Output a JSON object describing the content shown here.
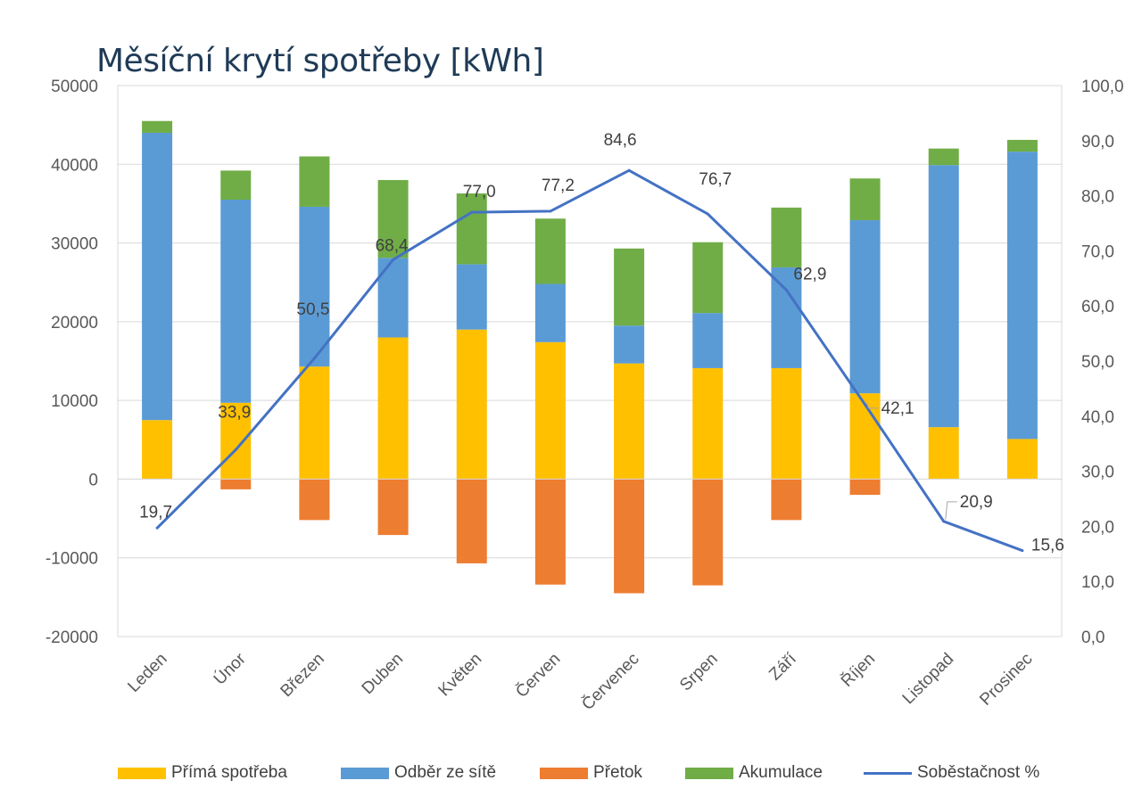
{
  "chart_data": {
    "type": "bar",
    "title": "Měsíční krytí spotřeby [kWh]",
    "categories": [
      "Leden",
      "Únor",
      "Březen",
      "Duben",
      "Květen",
      "Červen",
      "Červenec",
      "Srpen",
      "Září",
      "Říjen",
      "Listopad",
      "Prosinec"
    ],
    "ylim": [
      -20000,
      50000
    ],
    "y_ticks": [
      "50000",
      "40000",
      "30000",
      "20000",
      "10000",
      "0",
      "-10000",
      "-20000"
    ],
    "y2lim": [
      0,
      100
    ],
    "y2_ticks": [
      "100,0",
      "90,0",
      "80,0",
      "70,0",
      "60,0",
      "50,0",
      "40,0",
      "30,0",
      "20,0",
      "10,0",
      "0,0"
    ],
    "grid": true,
    "legend_position": "bottom",
    "series": [
      {
        "name": "Přímá spotřeba",
        "type": "bar",
        "color": "#ffc000",
        "values": [
          7500,
          9700,
          14300,
          18000,
          19000,
          17400,
          14700,
          14100,
          14100,
          10900,
          6600,
          5100
        ]
      },
      {
        "name": "Odběr ze sítě",
        "type": "bar",
        "color": "#5b9bd5",
        "values": [
          36500,
          25800,
          20300,
          10100,
          8300,
          7400,
          4800,
          7000,
          12800,
          22000,
          33300,
          36500
        ]
      },
      {
        "name": "Přetok",
        "type": "bar",
        "color": "#ed7d31",
        "values": [
          0,
          -1300,
          -5200,
          -7100,
          -10700,
          -13400,
          -14500,
          -13500,
          -5200,
          -2000,
          0,
          0
        ]
      },
      {
        "name": "Akumulace",
        "type": "bar",
        "color": "#70ad47",
        "values": [
          1500,
          3700,
          6400,
          9900,
          9000,
          8300,
          9800,
          9000,
          7600,
          5300,
          2100,
          1500
        ]
      },
      {
        "name": "Soběstačnost %",
        "type": "line",
        "axis": "secondary",
        "color": "#4472c4",
        "values": [
          19.7,
          33.9,
          50.5,
          68.4,
          77.0,
          77.2,
          84.6,
          76.7,
          62.9,
          42.1,
          20.9,
          15.6
        ],
        "labels": [
          "19,7",
          "33,9",
          "50,5",
          "68,4",
          "77,0",
          "77,2",
          "84,6",
          "76,7",
          "62,9",
          "42,1",
          "20,9",
          "15,6"
        ]
      }
    ]
  }
}
